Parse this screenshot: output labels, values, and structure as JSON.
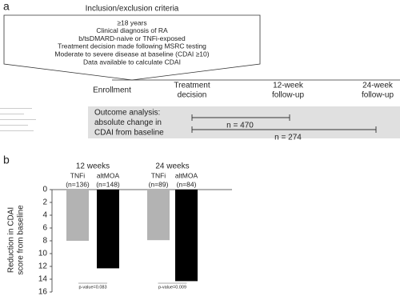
{
  "panel_a": {
    "label": "a",
    "criteria_title": "Inclusion/exclusion criteria",
    "criteria": [
      "≥18 years",
      "Clinical diagnosis of RA",
      "b/tsDMARD-naive or TNFi-exposed",
      "Treatment decision made following MSRC testing",
      "Moderate to severe disease at baseline (CDAI ≥10)",
      "Data available to calculate CDAI"
    ],
    "timeline": [
      [
        "Enrollment"
      ],
      [
        "Treatment",
        "decision"
      ],
      [
        "12-week",
        "follow-up"
      ],
      [
        "24-week",
        "follow-up"
      ]
    ],
    "outcome": [
      "Outcome analysis:",
      "absolute change in",
      "CDAI from baseline"
    ],
    "spans": [
      "n = 470",
      "n = 274"
    ]
  },
  "chart_data": {
    "type": "bar",
    "panel_label": "b",
    "y_label": [
      "Reduction in CDAI",
      "score from baseline"
    ],
    "groups": [
      {
        "title": "12 weeks",
        "p_value": "p-value=0.083",
        "bars": [
          {
            "name": "TNFi",
            "n": "(n=136)",
            "value": 8.0,
            "color": "#b3b3b3"
          },
          {
            "name": "altMOA",
            "n": "(n=148)",
            "value": 12.3,
            "color": "#000000"
          }
        ]
      },
      {
        "title": "24 weeks",
        "p_value": "p-value=0.009",
        "bars": [
          {
            "name": "TNFi",
            "n": "(n=89)",
            "value": 7.9,
            "color": "#b3b3b3"
          },
          {
            "name": "altMOA",
            "n": "(n=84)",
            "value": 14.3,
            "color": "#000000"
          }
        ]
      }
    ],
    "ylim": [
      0,
      16
    ],
    "yticks": [
      0,
      2,
      4,
      6,
      8,
      10,
      12,
      14,
      16
    ],
    "y_inverted": true
  }
}
